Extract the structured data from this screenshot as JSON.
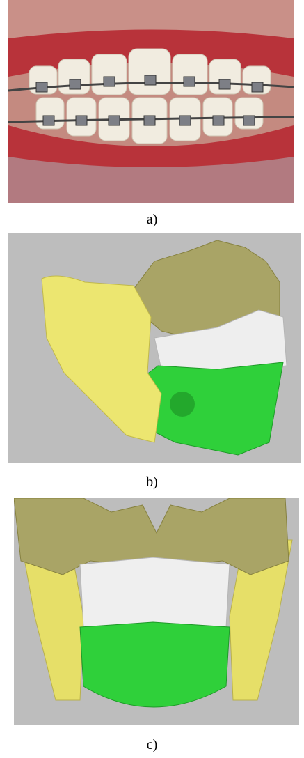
{
  "figures": [
    {
      "caption": "a)"
    },
    {
      "caption": "b)"
    },
    {
      "caption": "c)"
    }
  ]
}
